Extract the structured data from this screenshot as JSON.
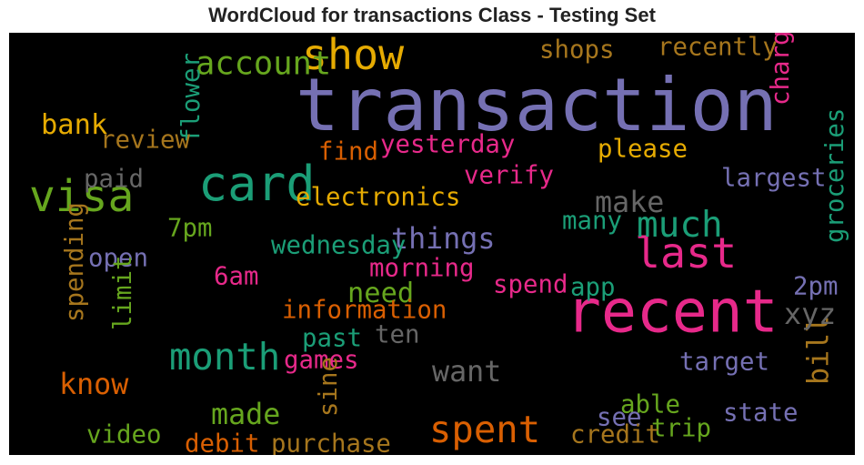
{
  "chart_data": {
    "type": "wordcloud",
    "title": "WordCloud for transactions Class - Testing Set",
    "background": "#000000",
    "palette": "Dark2",
    "words": [
      {
        "text": "transaction",
        "color": "#7570b3",
        "weight": 1.0,
        "orientation": "horizontal"
      },
      {
        "text": "recent",
        "color": "#e7298a",
        "weight": 0.79,
        "orientation": "horizontal"
      },
      {
        "text": "card",
        "color": "#1b9e77",
        "weight": 0.63,
        "orientation": "horizontal"
      },
      {
        "text": "visa",
        "color": "#66a61e",
        "weight": 0.55,
        "orientation": "horizontal"
      },
      {
        "text": "show",
        "color": "#e6ab02",
        "weight": 0.53,
        "orientation": "horizontal"
      },
      {
        "text": "last",
        "color": "#e7298a",
        "weight": 0.53,
        "orientation": "horizontal"
      },
      {
        "text": "month",
        "color": "#1b9e77",
        "weight": 0.44,
        "orientation": "horizontal"
      },
      {
        "text": "spent",
        "color": "#d95f02",
        "weight": 0.44,
        "orientation": "horizontal"
      },
      {
        "text": "much",
        "color": "#1b9e77",
        "weight": 0.42,
        "orientation": "horizontal"
      },
      {
        "text": "account",
        "color": "#66a61e",
        "weight": 0.36,
        "orientation": "horizontal"
      },
      {
        "text": "things",
        "color": "#7570b3",
        "weight": 0.3,
        "orientation": "horizontal"
      },
      {
        "text": "made",
        "color": "#66a61e",
        "weight": 0.3,
        "orientation": "horizontal"
      },
      {
        "text": "know",
        "color": "#d95f02",
        "weight": 0.3,
        "orientation": "horizontal"
      },
      {
        "text": "want",
        "color": "#666666",
        "weight": 0.3,
        "orientation": "horizontal"
      },
      {
        "text": "make",
        "color": "#666666",
        "weight": 0.3,
        "orientation": "horizontal"
      },
      {
        "text": "bill",
        "color": "#a6761d",
        "weight": 0.3,
        "orientation": "vertical"
      },
      {
        "text": "xyz",
        "color": "#666666",
        "weight": 0.3,
        "orientation": "horizontal"
      },
      {
        "text": "need",
        "color": "#66a61e",
        "weight": 0.28,
        "orientation": "horizontal"
      },
      {
        "text": "bank",
        "color": "#e6ab02",
        "weight": 0.28,
        "orientation": "horizontal"
      },
      {
        "text": "electronics",
        "color": "#e6ab02",
        "weight": 0.23,
        "orientation": "horizontal"
      },
      {
        "text": "verify",
        "color": "#e7298a",
        "weight": 0.23,
        "orientation": "horizontal"
      },
      {
        "text": "please",
        "color": "#e6ab02",
        "weight": 0.23,
        "orientation": "horizontal"
      },
      {
        "text": "largest",
        "color": "#7570b3",
        "weight": 0.23,
        "orientation": "horizontal"
      },
      {
        "text": "groceries",
        "color": "#1b9e77",
        "weight": 0.23,
        "orientation": "vertical"
      },
      {
        "text": "yesterday",
        "color": "#e7298a",
        "weight": 0.23,
        "orientation": "horizontal"
      },
      {
        "text": "find",
        "color": "#d95f02",
        "weight": 0.23,
        "orientation": "horizontal"
      },
      {
        "text": "flower",
        "color": "#1b9e77",
        "weight": 0.23,
        "orientation": "vertical"
      },
      {
        "text": "review",
        "color": "#a6761d",
        "weight": 0.23,
        "orientation": "horizontal"
      },
      {
        "text": "paid",
        "color": "#666666",
        "weight": 0.23,
        "orientation": "horizontal"
      },
      {
        "text": "7pm",
        "color": "#66a61e",
        "weight": 0.23,
        "orientation": "horizontal"
      },
      {
        "text": "wednesday",
        "color": "#1b9e77",
        "weight": 0.23,
        "orientation": "horizontal"
      },
      {
        "text": "open",
        "color": "#7570b3",
        "weight": 0.23,
        "orientation": "horizontal"
      },
      {
        "text": "spending",
        "color": "#a6761d",
        "weight": 0.23,
        "orientation": "vertical"
      },
      {
        "text": "limit",
        "color": "#66a61e",
        "weight": 0.23,
        "orientation": "vertical"
      },
      {
        "text": "6am",
        "color": "#e7298a",
        "weight": 0.23,
        "orientation": "horizontal"
      },
      {
        "text": "morning",
        "color": "#e7298a",
        "weight": 0.23,
        "orientation": "horizontal"
      },
      {
        "text": "spend",
        "color": "#e7298a",
        "weight": 0.23,
        "orientation": "horizontal"
      },
      {
        "text": "app",
        "color": "#1b9e77",
        "weight": 0.23,
        "orientation": "horizontal"
      },
      {
        "text": "2pm",
        "color": "#7570b3",
        "weight": 0.23,
        "orientation": "horizontal"
      },
      {
        "text": "information",
        "color": "#d95f02",
        "weight": 0.23,
        "orientation": "horizontal"
      },
      {
        "text": "past",
        "color": "#1b9e77",
        "weight": 0.23,
        "orientation": "horizontal"
      },
      {
        "text": "ten",
        "color": "#666666",
        "weight": 0.23,
        "orientation": "horizontal"
      },
      {
        "text": "games",
        "color": "#e7298a",
        "weight": 0.23,
        "orientation": "horizontal"
      },
      {
        "text": "target",
        "color": "#7570b3",
        "weight": 0.23,
        "orientation": "horizontal"
      },
      {
        "text": "sine",
        "color": "#a6761d",
        "weight": 0.23,
        "orientation": "vertical"
      },
      {
        "text": "able",
        "color": "#66a61e",
        "weight": 0.23,
        "orientation": "horizontal"
      },
      {
        "text": "see",
        "color": "#7570b3",
        "weight": 0.23,
        "orientation": "horizontal"
      },
      {
        "text": "state",
        "color": "#7570b3",
        "weight": 0.23,
        "orientation": "horizontal"
      },
      {
        "text": "trip",
        "color": "#66a61e",
        "weight": 0.23,
        "orientation": "horizontal"
      },
      {
        "text": "video",
        "color": "#66a61e",
        "weight": 0.23,
        "orientation": "horizontal"
      },
      {
        "text": "debit",
        "color": "#d95f02",
        "weight": 0.23,
        "orientation": "horizontal"
      },
      {
        "text": "purchase",
        "color": "#a6761d",
        "weight": 0.23,
        "orientation": "horizontal"
      },
      {
        "text": "credit",
        "color": "#a6761d",
        "weight": 0.23,
        "orientation": "horizontal"
      },
      {
        "text": "shops",
        "color": "#a6761d",
        "weight": 0.23,
        "orientation": "horizontal"
      },
      {
        "text": "recently",
        "color": "#a6761d",
        "weight": 0.23,
        "orientation": "horizontal"
      },
      {
        "text": "charges",
        "color": "#e7298a",
        "weight": 0.23,
        "orientation": "vertical"
      },
      {
        "text": "many",
        "color": "#1b9e77",
        "weight": 0.23,
        "orientation": "horizontal"
      }
    ]
  }
}
